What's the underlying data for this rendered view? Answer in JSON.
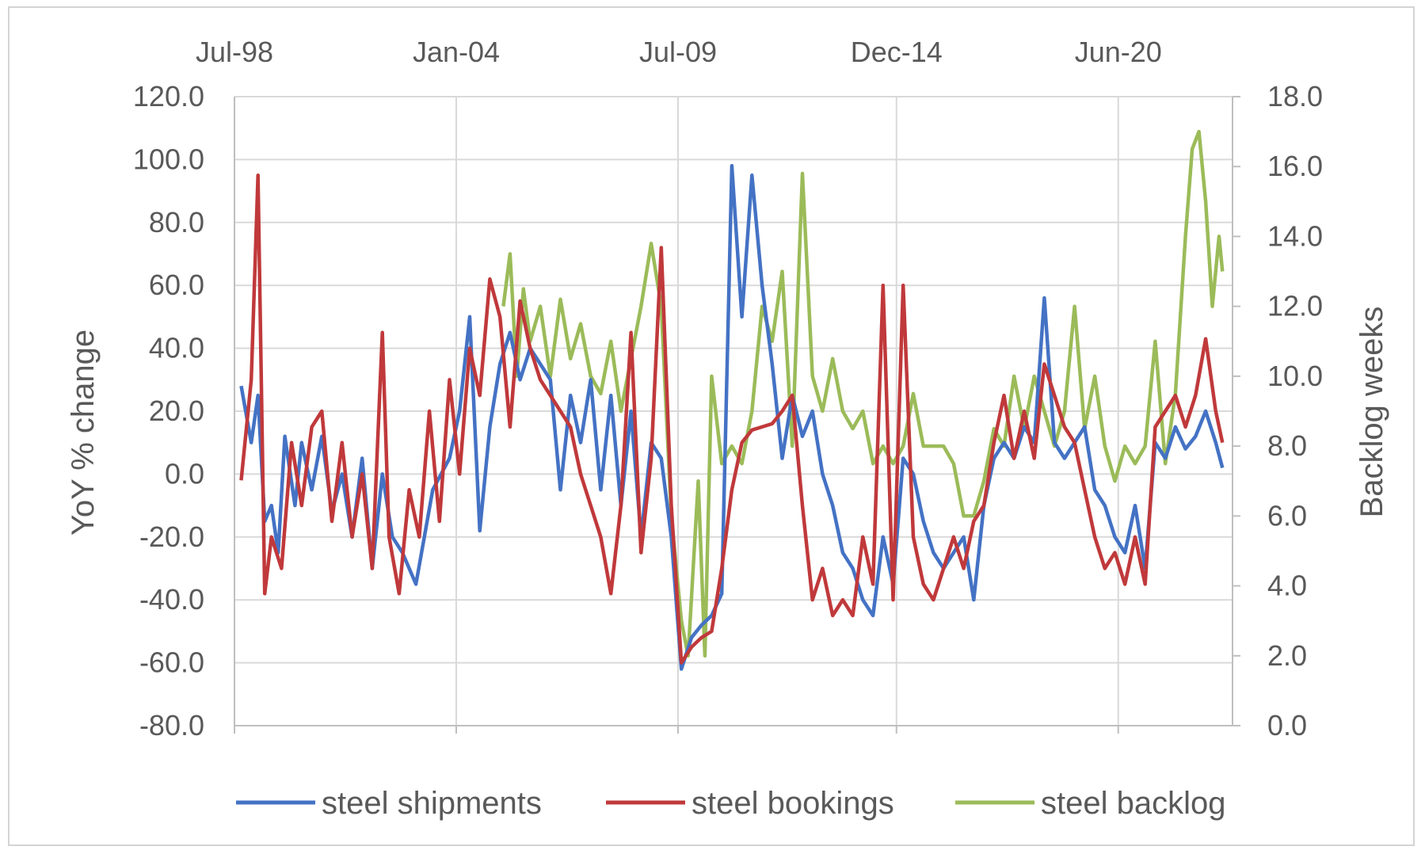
{
  "chart_data": {
    "type": "line",
    "title": "",
    "x_axis": {
      "position": "top",
      "tick_labels": [
        "Jul-98",
        "Jan-04",
        "Jul-09",
        "Dec-14",
        "Jun-20"
      ],
      "range": [
        "1998-07",
        "2023-04"
      ]
    },
    "y_left": {
      "label": "YoY % change",
      "ylim": [
        -80,
        120
      ],
      "ticks": [
        "120.0",
        "100.0",
        "80.0",
        "60.0",
        "40.0",
        "20.0",
        "0.0",
        "-20.0",
        "-40.0",
        "-60.0",
        "-80.0"
      ]
    },
    "y_right": {
      "label": "Backlog weeks",
      "ylim": [
        0,
        18
      ],
      "ticks": [
        "18.0",
        "16.0",
        "14.0",
        "12.0",
        "10.0",
        "8.0",
        "6.0",
        "4.0",
        "2.0",
        "0.0"
      ]
    },
    "grid": true,
    "legend": "bottom",
    "series": [
      {
        "name": "steel shipments",
        "axis": "left",
        "color": "#4472C4",
        "points": [
          [
            "1998-09",
            28
          ],
          [
            "1998-12",
            10
          ],
          [
            "1999-02",
            25
          ],
          [
            "1999-04",
            -15
          ],
          [
            "1999-06",
            -10
          ],
          [
            "1999-08",
            -25
          ],
          [
            "1999-10",
            12
          ],
          [
            "2000-01",
            -10
          ],
          [
            "2000-03",
            10
          ],
          [
            "2000-06",
            -5
          ],
          [
            "2000-09",
            12
          ],
          [
            "2000-12",
            -12
          ],
          [
            "2001-03",
            0
          ],
          [
            "2001-06",
            -20
          ],
          [
            "2001-09",
            5
          ],
          [
            "2001-12",
            -30
          ],
          [
            "2002-03",
            0
          ],
          [
            "2002-06",
            -20
          ],
          [
            "2002-09",
            -25
          ],
          [
            "2003-01",
            -35
          ],
          [
            "2003-06",
            -5
          ],
          [
            "2003-11",
            5
          ],
          [
            "2004-02",
            20
          ],
          [
            "2004-05",
            50
          ],
          [
            "2004-08",
            -18
          ],
          [
            "2004-11",
            15
          ],
          [
            "2005-02",
            35
          ],
          [
            "2005-05",
            45
          ],
          [
            "2005-08",
            30
          ],
          [
            "2005-11",
            40
          ],
          [
            "2006-02",
            35
          ],
          [
            "2006-05",
            30
          ],
          [
            "2006-08",
            -5
          ],
          [
            "2006-11",
            25
          ],
          [
            "2007-02",
            10
          ],
          [
            "2007-05",
            30
          ],
          [
            "2007-08",
            -5
          ],
          [
            "2007-11",
            25
          ],
          [
            "2008-02",
            -10
          ],
          [
            "2008-05",
            20
          ],
          [
            "2008-08",
            -20
          ],
          [
            "2008-11",
            10
          ],
          [
            "2009-02",
            5
          ],
          [
            "2009-05",
            -20
          ],
          [
            "2009-08",
            -62
          ],
          [
            "2009-11",
            -52
          ],
          [
            "2010-02",
            -48
          ],
          [
            "2010-05",
            -45
          ],
          [
            "2010-08",
            -38
          ],
          [
            "2010-11",
            98
          ],
          [
            "2011-02",
            50
          ],
          [
            "2011-05",
            95
          ],
          [
            "2011-08",
            60
          ],
          [
            "2011-11",
            35
          ],
          [
            "2012-02",
            5
          ],
          [
            "2012-05",
            25
          ],
          [
            "2012-08",
            12
          ],
          [
            "2012-11",
            20
          ],
          [
            "2013-02",
            0
          ],
          [
            "2013-05",
            -10
          ],
          [
            "2013-08",
            -25
          ],
          [
            "2013-11",
            -30
          ],
          [
            "2014-02",
            -40
          ],
          [
            "2014-05",
            -45
          ],
          [
            "2014-08",
            -20
          ],
          [
            "2014-11",
            -35
          ],
          [
            "2015-02",
            5
          ],
          [
            "2015-05",
            0
          ],
          [
            "2015-08",
            -15
          ],
          [
            "2015-11",
            -25
          ],
          [
            "2016-02",
            -30
          ],
          [
            "2016-05",
            -25
          ],
          [
            "2016-08",
            -20
          ],
          [
            "2016-11",
            -40
          ],
          [
            "2017-02",
            -10
          ],
          [
            "2017-05",
            5
          ],
          [
            "2017-08",
            10
          ],
          [
            "2017-11",
            5
          ],
          [
            "2018-02",
            15
          ],
          [
            "2018-05",
            10
          ],
          [
            "2018-08",
            56
          ],
          [
            "2018-11",
            10
          ],
          [
            "2019-02",
            5
          ],
          [
            "2019-05",
            10
          ],
          [
            "2019-08",
            15
          ],
          [
            "2019-11",
            -5
          ],
          [
            "2020-02",
            -10
          ],
          [
            "2020-05",
            -20
          ],
          [
            "2020-08",
            -25
          ],
          [
            "2020-11",
            -10
          ],
          [
            "2021-02",
            -30
          ],
          [
            "2021-05",
            10
          ],
          [
            "2021-08",
            5
          ],
          [
            "2021-11",
            15
          ],
          [
            "2022-02",
            8
          ],
          [
            "2022-05",
            12
          ],
          [
            "2022-08",
            20
          ],
          [
            "2022-11",
            10
          ],
          [
            "2023-01",
            2
          ]
        ]
      },
      {
        "name": "steel bookings",
        "axis": "left",
        "color": "#C0393B",
        "points": [
          [
            "1998-09",
            -2
          ],
          [
            "1998-12",
            30
          ],
          [
            "1999-02",
            95
          ],
          [
            "1999-04",
            -38
          ],
          [
            "1999-06",
            -20
          ],
          [
            "1999-09",
            -30
          ],
          [
            "1999-12",
            10
          ],
          [
            "2000-03",
            -10
          ],
          [
            "2000-06",
            15
          ],
          [
            "2000-09",
            20
          ],
          [
            "2000-12",
            -15
          ],
          [
            "2001-03",
            10
          ],
          [
            "2001-06",
            -20
          ],
          [
            "2001-09",
            0
          ],
          [
            "2001-12",
            -30
          ],
          [
            "2002-03",
            45
          ],
          [
            "2002-05",
            -20
          ],
          [
            "2002-08",
            -38
          ],
          [
            "2002-11",
            -5
          ],
          [
            "2003-02",
            -20
          ],
          [
            "2003-05",
            20
          ],
          [
            "2003-08",
            -15
          ],
          [
            "2003-11",
            30
          ],
          [
            "2004-02",
            0
          ],
          [
            "2004-05",
            40
          ],
          [
            "2004-08",
            25
          ],
          [
            "2004-11",
            62
          ],
          [
            "2005-02",
            50
          ],
          [
            "2005-05",
            15
          ],
          [
            "2005-08",
            55
          ],
          [
            "2005-11",
            40
          ],
          [
            "2006-02",
            30
          ],
          [
            "2006-05",
            25
          ],
          [
            "2006-08",
            20
          ],
          [
            "2006-11",
            15
          ],
          [
            "2007-02",
            0
          ],
          [
            "2007-05",
            -10
          ],
          [
            "2007-08",
            -20
          ],
          [
            "2007-11",
            -38
          ],
          [
            "2008-02",
            -10
          ],
          [
            "2008-05",
            45
          ],
          [
            "2008-08",
            -25
          ],
          [
            "2008-11",
            5
          ],
          [
            "2009-02",
            72
          ],
          [
            "2009-05",
            -10
          ],
          [
            "2009-08",
            -60
          ],
          [
            "2009-11",
            -55
          ],
          [
            "2010-02",
            -52
          ],
          [
            "2010-05",
            -50
          ],
          [
            "2010-08",
            -30
          ],
          [
            "2010-11",
            -5
          ],
          [
            "2011-02",
            10
          ],
          [
            "2011-05",
            14
          ],
          [
            "2011-08",
            15
          ],
          [
            "2011-11",
            16
          ],
          [
            "2012-02",
            20
          ],
          [
            "2012-05",
            25
          ],
          [
            "2012-08",
            -10
          ],
          [
            "2012-11",
            -40
          ],
          [
            "2013-02",
            -30
          ],
          [
            "2013-05",
            -45
          ],
          [
            "2013-08",
            -40
          ],
          [
            "2013-11",
            -45
          ],
          [
            "2014-02",
            -20
          ],
          [
            "2014-05",
            -35
          ],
          [
            "2014-08",
            60
          ],
          [
            "2014-11",
            -40
          ],
          [
            "2015-02",
            60
          ],
          [
            "2015-05",
            -20
          ],
          [
            "2015-08",
            -35
          ],
          [
            "2015-11",
            -40
          ],
          [
            "2016-02",
            -30
          ],
          [
            "2016-05",
            -20
          ],
          [
            "2016-08",
            -30
          ],
          [
            "2016-11",
            -15
          ],
          [
            "2017-02",
            -10
          ],
          [
            "2017-05",
            10
          ],
          [
            "2017-08",
            25
          ],
          [
            "2017-11",
            5
          ],
          [
            "2018-02",
            20
          ],
          [
            "2018-05",
            5
          ],
          [
            "2018-08",
            35
          ],
          [
            "2018-11",
            25
          ],
          [
            "2019-02",
            15
          ],
          [
            "2019-05",
            10
          ],
          [
            "2019-08",
            -5
          ],
          [
            "2019-11",
            -20
          ],
          [
            "2020-02",
            -30
          ],
          [
            "2020-05",
            -25
          ],
          [
            "2020-08",
            -35
          ],
          [
            "2020-11",
            -20
          ],
          [
            "2021-02",
            -35
          ],
          [
            "2021-05",
            15
          ],
          [
            "2021-08",
            20
          ],
          [
            "2021-11",
            25
          ],
          [
            "2022-02",
            15
          ],
          [
            "2022-05",
            25
          ],
          [
            "2022-08",
            43
          ],
          [
            "2022-11",
            20
          ],
          [
            "2023-01",
            10
          ]
        ]
      },
      {
        "name": "steel backlog",
        "axis": "right",
        "color": "#9BBB59",
        "points": [
          [
            "2005-03",
            12
          ],
          [
            "2005-05",
            13.5
          ],
          [
            "2005-07",
            10
          ],
          [
            "2005-09",
            12.5
          ],
          [
            "2005-11",
            11
          ],
          [
            "2006-02",
            12
          ],
          [
            "2006-05",
            10
          ],
          [
            "2006-08",
            12.2
          ],
          [
            "2006-11",
            10.5
          ],
          [
            "2007-02",
            11.5
          ],
          [
            "2007-05",
            10
          ],
          [
            "2007-08",
            9.5
          ],
          [
            "2007-11",
            11
          ],
          [
            "2008-02",
            9
          ],
          [
            "2008-05",
            10.5
          ],
          [
            "2008-08",
            12
          ],
          [
            "2008-11",
            13.8
          ],
          [
            "2009-02",
            12
          ],
          [
            "2009-05",
            6
          ],
          [
            "2009-08",
            3
          ],
          [
            "2009-10",
            2
          ],
          [
            "2010-01",
            7
          ],
          [
            "2010-03",
            2
          ],
          [
            "2010-05",
            10
          ],
          [
            "2010-08",
            7.5
          ],
          [
            "2010-11",
            8
          ],
          [
            "2011-02",
            7.5
          ],
          [
            "2011-05",
            9
          ],
          [
            "2011-08",
            12
          ],
          [
            "2011-11",
            11
          ],
          [
            "2012-02",
            13
          ],
          [
            "2012-05",
            8
          ],
          [
            "2012-08",
            15.8
          ],
          [
            "2012-11",
            10
          ],
          [
            "2013-02",
            9
          ],
          [
            "2013-05",
            10.5
          ],
          [
            "2013-08",
            9
          ],
          [
            "2013-11",
            8.5
          ],
          [
            "2014-02",
            9
          ],
          [
            "2014-05",
            7.5
          ],
          [
            "2014-08",
            8
          ],
          [
            "2014-11",
            7.5
          ],
          [
            "2015-02",
            8
          ],
          [
            "2015-05",
            9.5
          ],
          [
            "2015-08",
            8
          ],
          [
            "2015-11",
            8
          ],
          [
            "2016-02",
            8
          ],
          [
            "2016-05",
            7.5
          ],
          [
            "2016-08",
            6
          ],
          [
            "2016-11",
            6
          ],
          [
            "2017-02",
            7
          ],
          [
            "2017-05",
            8.5
          ],
          [
            "2017-08",
            8
          ],
          [
            "2017-11",
            10
          ],
          [
            "2018-02",
            8.5
          ],
          [
            "2018-05",
            10
          ],
          [
            "2018-08",
            9
          ],
          [
            "2018-11",
            8
          ],
          [
            "2019-02",
            9
          ],
          [
            "2019-05",
            12
          ],
          [
            "2019-08",
            8.5
          ],
          [
            "2019-11",
            10
          ],
          [
            "2020-02",
            8
          ],
          [
            "2020-05",
            7
          ],
          [
            "2020-08",
            8
          ],
          [
            "2020-11",
            7.5
          ],
          [
            "2021-02",
            8
          ],
          [
            "2021-05",
            11
          ],
          [
            "2021-08",
            7.5
          ],
          [
            "2021-11",
            9.5
          ],
          [
            "2022-02",
            14
          ],
          [
            "2022-04",
            16.5
          ],
          [
            "2022-06",
            17
          ],
          [
            "2022-08",
            15
          ],
          [
            "2022-10",
            12
          ],
          [
            "2022-12",
            14
          ],
          [
            "2023-01",
            13
          ]
        ]
      }
    ]
  }
}
